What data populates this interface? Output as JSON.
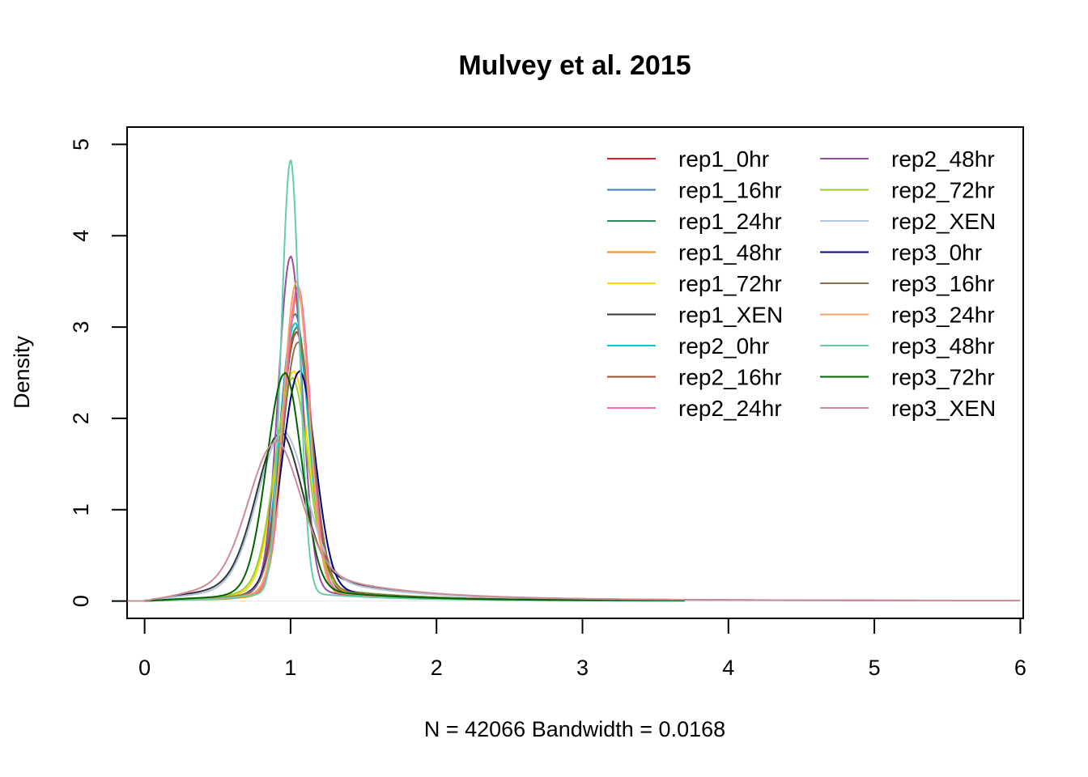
{
  "chart_data": {
    "type": "line",
    "title": "Mulvey et al. 2015",
    "xlabel": "N = 42066   Bandwidth = 0.0168",
    "ylabel": "Density",
    "xlim": [
      -0.12,
      6.02
    ],
    "ylim": [
      -0.19,
      5.19
    ],
    "x_ticks": [
      0,
      1,
      2,
      3,
      4,
      5,
      6
    ],
    "y_ticks": [
      0,
      1,
      2,
      3,
      4,
      5
    ],
    "legend_position": "top-right",
    "grid": false,
    "series": [
      {
        "name": "rep1_0hr",
        "color": "#E41A1C",
        "peak_x": 1.04,
        "peak_y": 2.85,
        "width": 0.1,
        "tail": 0.04,
        "end_x": 3.7
      },
      {
        "name": "rep1_16hr",
        "color": "#377EB8",
        "peak_x": 1.03,
        "peak_y": 3.05,
        "width": 0.095,
        "tail": 0.04,
        "end_x": 3.7
      },
      {
        "name": "rep1_24hr",
        "color": "#2E8B57",
        "peak_x": 1.04,
        "peak_y": 2.9,
        "width": 0.1,
        "tail": 0.04,
        "end_x": 3.7
      },
      {
        "name": "rep1_48hr",
        "color": "#FF8C00",
        "peak_x": 1.05,
        "peak_y": 3.3,
        "width": 0.085,
        "tail": 0.03,
        "end_x": 3.7
      },
      {
        "name": "rep1_72hr",
        "color": "#FFD700",
        "peak_x": 1.02,
        "peak_y": 2.4,
        "width": 0.11,
        "tail": 0.05,
        "end_x": 3.7
      },
      {
        "name": "rep1_XEN",
        "color": "#333333",
        "peak_x": 0.93,
        "peak_y": 1.55,
        "width": 0.15,
        "tail": 0.13,
        "end_x": 5.3
      },
      {
        "name": "rep2_0hr",
        "color": "#00CED1",
        "peak_x": 1.03,
        "peak_y": 2.95,
        "width": 0.095,
        "tail": 0.04,
        "end_x": 3.7
      },
      {
        "name": "rep2_16hr",
        "color": "#A0522D",
        "peak_x": 1.04,
        "peak_y": 2.85,
        "width": 0.1,
        "tail": 0.04,
        "end_x": 3.7
      },
      {
        "name": "rep2_24hr",
        "color": "#FF69B4",
        "peak_x": 1.05,
        "peak_y": 3.35,
        "width": 0.085,
        "tail": 0.04,
        "end_x": 3.7
      },
      {
        "name": "rep2_48hr",
        "color": "#984EA3",
        "peak_x": 1.0,
        "peak_y": 3.68,
        "width": 0.08,
        "tail": 0.04,
        "end_x": 3.7
      },
      {
        "name": "rep2_72hr",
        "color": "#9ACD32",
        "peak_x": 1.01,
        "peak_y": 2.3,
        "width": 0.11,
        "tail": 0.06,
        "end_x": 3.7
      },
      {
        "name": "rep2_XEN",
        "color": "#B0C4DE",
        "peak_x": 0.95,
        "peak_y": 1.6,
        "width": 0.16,
        "tail": 0.11,
        "end_x": 5.3
      },
      {
        "name": "rep3_0hr",
        "color": "#00008B",
        "peak_x": 1.06,
        "peak_y": 2.4,
        "width": 0.11,
        "tail": 0.05,
        "end_x": 3.7
      },
      {
        "name": "rep3_16hr",
        "color": "#8B7355",
        "peak_x": 1.05,
        "peak_y": 2.72,
        "width": 0.1,
        "tail": 0.05,
        "end_x": 3.7
      },
      {
        "name": "rep3_24hr",
        "color": "#F4A460",
        "peak_x": 1.04,
        "peak_y": 3.4,
        "width": 0.085,
        "tail": 0.04,
        "end_x": 3.7
      },
      {
        "name": "rep3_48hr",
        "color": "#66CDAA",
        "peak_x": 1.0,
        "peak_y": 4.76,
        "width": 0.06,
        "tail": 0.03,
        "end_x": 3.7
      },
      {
        "name": "rep3_72hr",
        "color": "#006400",
        "peak_x": 0.96,
        "peak_y": 2.38,
        "width": 0.115,
        "tail": 0.05,
        "end_x": 3.7
      },
      {
        "name": "rep3_XEN",
        "color": "#CD8C95",
        "peak_x": 0.9,
        "peak_y": 1.43,
        "width": 0.17,
        "tail": 0.14,
        "end_x": 6.0
      }
    ]
  }
}
